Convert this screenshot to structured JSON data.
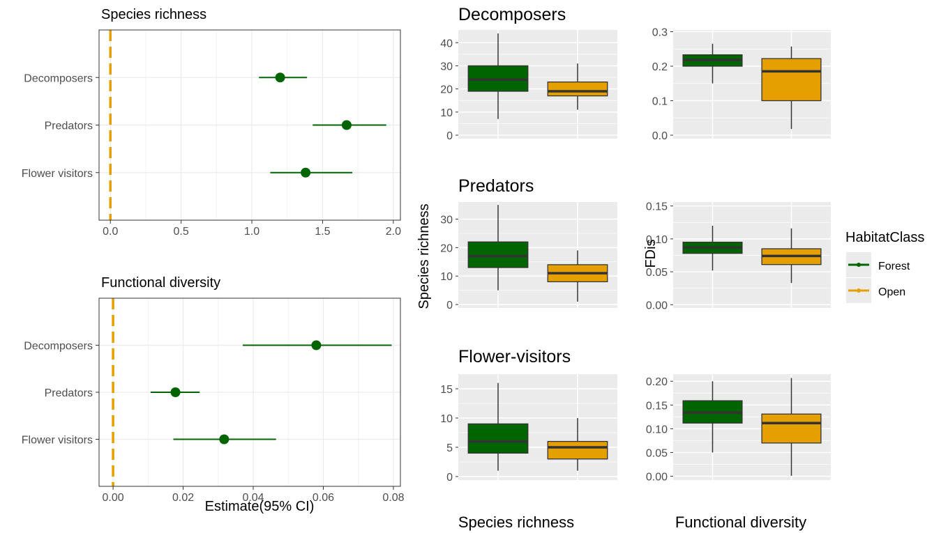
{
  "colors": {
    "forest": "#006400",
    "open": "#E69F00",
    "panel_bg": "#EBEBEB",
    "grid": "#FFFFFF",
    "text": "#4D4D4D",
    "title": "#000000",
    "zero_line": "#E69F00"
  },
  "labels": {
    "estimate_xlabel": "Estimate(95% CI)",
    "box_ylabel_left": "Species richness",
    "box_ylabel_right": "FDis",
    "bottom_left": "Species richness",
    "bottom_right": "Functional diversity"
  },
  "legend": {
    "title": "HabitatClass",
    "items": [
      {
        "label": "Forest",
        "color": "#006400"
      },
      {
        "label": "Open",
        "color": "#E69F00"
      }
    ]
  },
  "chart_data": [
    {
      "type": "scatter",
      "title": "Species richness",
      "xlabel": "",
      "xlim": [
        -0.08,
        2.05
      ],
      "xticks": [
        0.0,
        0.5,
        1.0,
        1.5,
        2.0
      ],
      "xtick_labels": [
        "0.0",
        "0.5",
        "1.0",
        "1.5",
        "2.0"
      ],
      "categories": [
        "Decomposers",
        "Predators",
        "Flower visitors"
      ],
      "estimates": [
        1.2,
        1.67,
        1.38
      ],
      "ci_low": [
        1.05,
        1.43,
        1.13
      ],
      "ci_high": [
        1.39,
        1.95,
        1.71
      ],
      "reference_line": 0.0
    },
    {
      "type": "scatter",
      "title": "Functional diversity",
      "xlabel": "Estimate(95% CI)",
      "xlim": [
        -0.004,
        0.082
      ],
      "xticks": [
        0.0,
        0.02,
        0.04,
        0.06,
        0.08
      ],
      "xtick_labels": [
        "0.00",
        "0.02",
        "0.04",
        "0.06",
        "0.08"
      ],
      "categories": [
        "Decomposers",
        "Predators",
        "Flower visitors"
      ],
      "estimates": [
        0.058,
        0.0178,
        0.0317
      ],
      "ci_low": [
        0.037,
        0.0107,
        0.0172
      ],
      "ci_high": [
        0.0795,
        0.0247,
        0.0465
      ],
      "reference_line": 0.0
    },
    {
      "type": "box",
      "title": "Decomposers",
      "ylabel": "",
      "ylim": [
        -1.5,
        45.5
      ],
      "yticks": [
        0,
        10,
        20,
        30,
        40
      ],
      "ytick_labels": [
        "0",
        "10",
        "20",
        "30",
        "40"
      ],
      "series": [
        {
          "name": "Forest",
          "min": 7,
          "q1": 19,
          "median": 24,
          "q3": 30,
          "max": 44
        },
        {
          "name": "Open",
          "min": 11,
          "q1": 17,
          "median": 19,
          "q3": 23,
          "max": 31
        }
      ]
    },
    {
      "type": "box",
      "title": "",
      "ylabel": "",
      "ylim": [
        -0.01,
        0.305
      ],
      "yticks": [
        0.0,
        0.1,
        0.2,
        0.3
      ],
      "ytick_labels": [
        "0.0",
        "0.1",
        "0.2",
        "0.3"
      ],
      "series": [
        {
          "name": "Forest",
          "min": 0.15,
          "q1": 0.2,
          "median": 0.218,
          "q3": 0.233,
          "max": 0.265
        },
        {
          "name": "Open",
          "min": 0.018,
          "q1": 0.1,
          "median": 0.185,
          "q3": 0.222,
          "max": 0.257
        }
      ]
    },
    {
      "type": "box",
      "title": "Predators",
      "ylabel": "Species richness",
      "ylim": [
        -1.2,
        36
      ],
      "yticks": [
        0,
        10,
        20,
        30
      ],
      "ytick_labels": [
        "0",
        "10",
        "20",
        "30"
      ],
      "series": [
        {
          "name": "Forest",
          "min": 5,
          "q1": 13,
          "median": 17,
          "q3": 22,
          "max": 35
        },
        {
          "name": "Open",
          "min": 1,
          "q1": 8,
          "median": 11,
          "q3": 14,
          "max": 19
        }
      ]
    },
    {
      "type": "box",
      "title": "",
      "ylabel": "FDis",
      "ylim": [
        -0.005,
        0.156
      ],
      "yticks": [
        0.0,
        0.05,
        0.1,
        0.15
      ],
      "ytick_labels": [
        "0.00",
        "0.05",
        "0.10",
        "0.15"
      ],
      "series": [
        {
          "name": "Forest",
          "min": 0.052,
          "q1": 0.078,
          "median": 0.087,
          "q3": 0.095,
          "max": 0.12
        },
        {
          "name": "Open",
          "min": 0.033,
          "q1": 0.061,
          "median": 0.074,
          "q3": 0.085,
          "max": 0.116
        }
      ]
    },
    {
      "type": "box",
      "title": "Flower-visitors",
      "ylabel": "",
      "ylim": [
        -0.6,
        17.5
      ],
      "yticks": [
        0,
        5,
        10,
        15
      ],
      "ytick_labels": [
        "0",
        "5",
        "10",
        "15"
      ],
      "series": [
        {
          "name": "Forest",
          "min": 1,
          "q1": 4,
          "median": 6,
          "q3": 9,
          "max": 16
        },
        {
          "name": "Open",
          "min": 1,
          "q1": 3,
          "median": 5,
          "q3": 6,
          "max": 10
        }
      ]
    },
    {
      "type": "box",
      "title": "",
      "ylabel": "",
      "ylim": [
        -0.008,
        0.215
      ],
      "yticks": [
        0.0,
        0.05,
        0.1,
        0.15,
        0.2
      ],
      "ytick_labels": [
        "0.00",
        "0.05",
        "0.10",
        "0.15",
        "0.20"
      ],
      "series": [
        {
          "name": "Forest",
          "min": 0.05,
          "q1": 0.112,
          "median": 0.134,
          "q3": 0.159,
          "max": 0.2
        },
        {
          "name": "Open",
          "min": 0.001,
          "q1": 0.07,
          "median": 0.112,
          "q3": 0.131,
          "max": 0.207
        }
      ]
    }
  ]
}
